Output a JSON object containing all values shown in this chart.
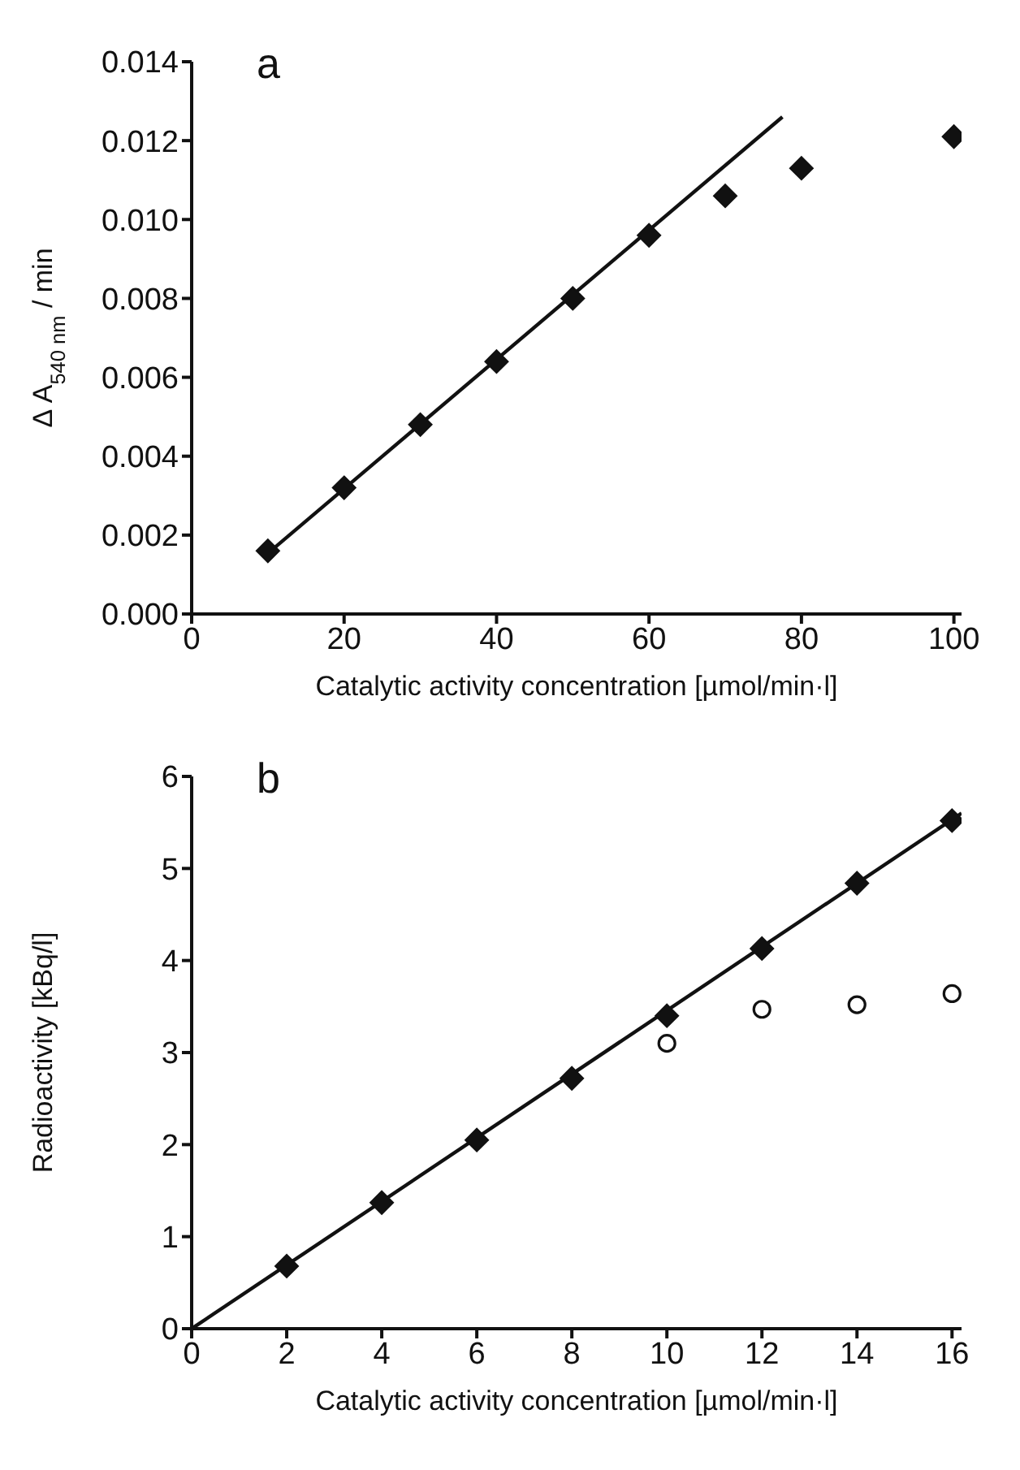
{
  "chart_data": [
    {
      "type": "scatter",
      "title": "a",
      "xlabel": "Catalytic activity  concentration  [µmol/min·l]",
      "ylabel": "Δ  A$_{540 nm}$  / min",
      "xlim": [
        0,
        101
      ],
      "xticks": [
        0,
        20,
        40,
        60,
        80,
        100
      ],
      "ylim": [
        0,
        0.014
      ],
      "yticks": [
        {
          "value": 0,
          "label": "0.000"
        },
        {
          "value": 0.002,
          "label": "0.002"
        },
        {
          "value": 0.004,
          "label": "0.004"
        },
        {
          "value": 0.006,
          "label": "0.006"
        },
        {
          "value": 0.008,
          "label": "0.008"
        },
        {
          "value": 0.01,
          "label": "0.010"
        },
        {
          "value": 0.012,
          "label": "0.012"
        },
        {
          "value": 0.014,
          "label": "0.014"
        }
      ],
      "grid": false,
      "legend": false,
      "series": [
        {
          "marker": "diamond",
          "color": "#111111",
          "x": [
            10,
            20,
            30,
            40,
            50,
            60,
            70,
            80,
            100
          ],
          "values": [
            0.0016,
            0.0032,
            0.0048,
            0.0064,
            0.008,
            0.0096,
            0.0106,
            0.0113,
            0.0121
          ]
        },
        {
          "type": "line",
          "marker": "none",
          "color": "#111111",
          "x": [
            11,
            77.5
          ],
          "values": [
            0.0017,
            0.0126
          ]
        }
      ]
    },
    {
      "type": "scatter",
      "title": "b",
      "xlabel": "Catalytic activity  concentration  [µmol/min·l]",
      "ylabel": "Radioactivity [kBq/l]",
      "xlim": [
        0,
        16.2
      ],
      "xticks": [
        0,
        2,
        4,
        6,
        8,
        10,
        12,
        14,
        16
      ],
      "ylim": [
        0,
        6
      ],
      "yticks": [
        0,
        1,
        2,
        3,
        4,
        5,
        6
      ],
      "grid": false,
      "legend": false,
      "series": [
        {
          "marker": "diamond",
          "color": "#111111",
          "x": [
            2,
            4,
            6,
            8,
            10,
            12,
            14,
            16
          ],
          "values": [
            0.68,
            1.37,
            2.05,
            2.72,
            3.4,
            4.13,
            4.84,
            5.52
          ]
        },
        {
          "marker": "circle",
          "color": "#111111",
          "x": [
            10,
            12,
            14,
            16
          ],
          "values": [
            3.1,
            3.47,
            3.52,
            3.64
          ]
        },
        {
          "type": "line",
          "marker": "none",
          "color": "#111111",
          "x": [
            0,
            16.2
          ],
          "values": [
            0,
            5.6
          ]
        }
      ]
    }
  ]
}
